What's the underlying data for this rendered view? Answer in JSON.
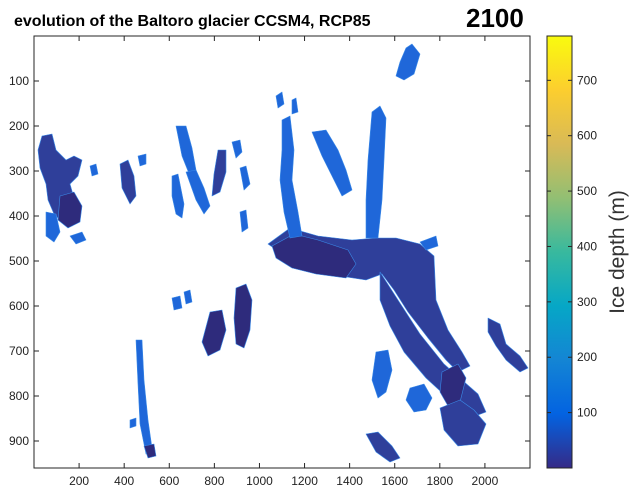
{
  "chart_data": {
    "type": "heatmap",
    "title": "evolution of the Baltoro glacier  CCSM4, RCP85",
    "year": "2100",
    "xlabel": "",
    "ylabel": "",
    "xlim": [
      0,
      2200
    ],
    "ylim": [
      960,
      0
    ],
    "xticks": [
      200,
      400,
      600,
      800,
      1000,
      1200,
      1400,
      1600,
      1800,
      2000
    ],
    "yticks": [
      100,
      200,
      300,
      400,
      500,
      600,
      700,
      800,
      900
    ],
    "colorbar": {
      "label": "Ice depth (m)",
      "range": [
        0,
        780
      ],
      "ticks": [
        100,
        200,
        300,
        400,
        500,
        600,
        700
      ],
      "colormap": "parula",
      "colors": [
        "#352a87",
        "#0363e1",
        "#1485d4",
        "#06a7c6",
        "#38b99e",
        "#92bf73",
        "#d9ba56",
        "#fcce2e",
        "#f9fb0e"
      ]
    },
    "ice_colors": {
      "deep": "#2e2b7c",
      "mid": "#2f3f9a",
      "thin": "#1f67d9",
      "edge": "#3a8ae8"
    }
  }
}
